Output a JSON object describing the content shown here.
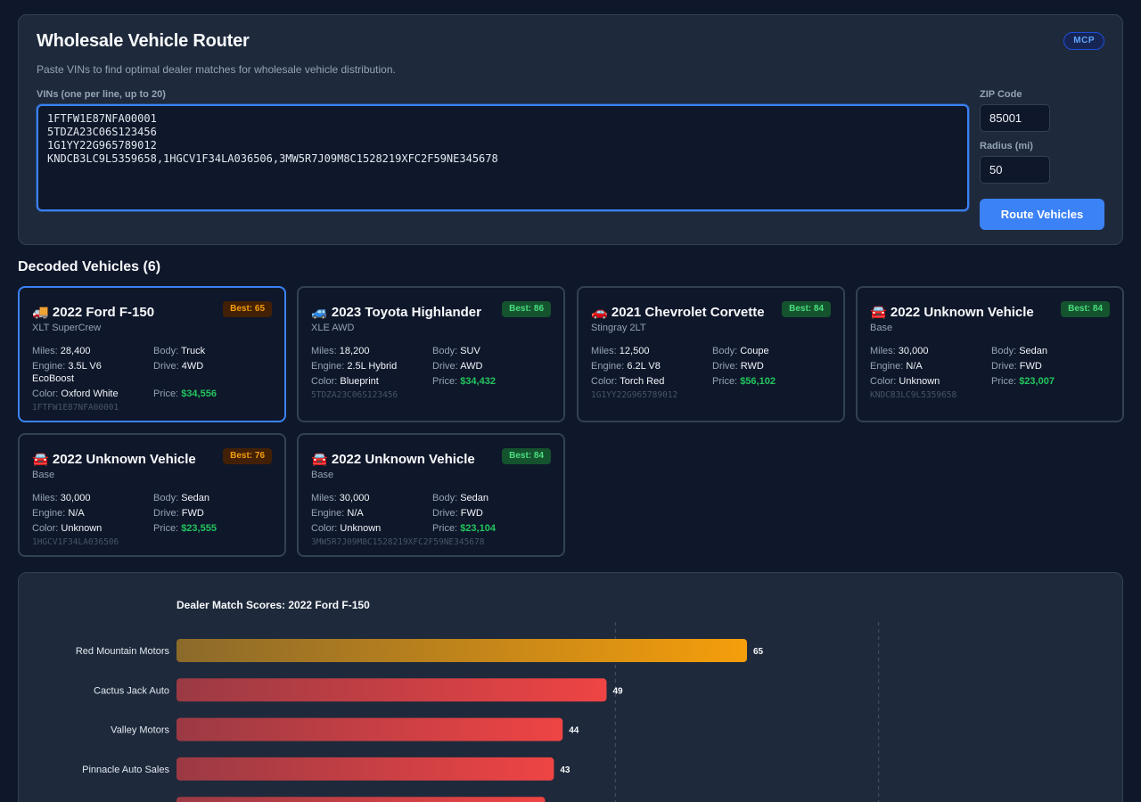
{
  "header": {
    "title": "Wholesale Vehicle Router",
    "badge": "MCP",
    "subtitle": "Paste VINs to find optimal dealer matches for wholesale vehicle distribution."
  },
  "form": {
    "vin_label": "VINs (one per line, up to 20)",
    "vin_value": "1FTFW1E87NFA00001\n5TDZA23C06S123456\n1G1YY22G965789012\nKNDCB3LC9L5359658,1HGCV1F34LA036506,3MW5R7J09M8C1528219XFC2F59NE345678",
    "zip_label": "ZIP Code",
    "zip_value": "85001",
    "radius_label": "Radius (mi)",
    "radius_value": "50",
    "submit_label": "Route Vehicles"
  },
  "decoded": {
    "title": "Decoded Vehicles (6)",
    "labels": {
      "miles": "Miles:",
      "engine": "Engine:",
      "color": "Color:",
      "body": "Body:",
      "drive": "Drive:",
      "price": "Price:"
    },
    "vehicles": [
      {
        "icon": "🚚",
        "title": "2022 Ford F-150",
        "trim": "XLT SuperCrew",
        "best": "Best: 65",
        "best_color": "orange",
        "miles": "28,400",
        "engine": "3.5L V6 EcoBoost",
        "color": "Oxford White",
        "body": "Truck",
        "drive": "4WD",
        "price": "$34,556",
        "vin": "1FTFW1E87NFA00001",
        "selected": true
      },
      {
        "icon": "🚙",
        "title": "2023 Toyota Highlander",
        "trim": "XLE AWD",
        "best": "Best: 86",
        "best_color": "green",
        "miles": "18,200",
        "engine": "2.5L Hybrid",
        "color": "Blueprint",
        "body": "SUV",
        "drive": "AWD",
        "price": "$34,432",
        "vin": "5TDZA23C06S123456",
        "selected": false
      },
      {
        "icon": "🚗",
        "title": "2021 Chevrolet Corvette",
        "trim": "Stingray 2LT",
        "best": "Best: 84",
        "best_color": "green",
        "miles": "12,500",
        "engine": "6.2L V8",
        "color": "Torch Red",
        "body": "Coupe",
        "drive": "RWD",
        "price": "$56,102",
        "vin": "1G1YY22G965789012",
        "selected": false
      },
      {
        "icon": "🚘",
        "title": "2022 Unknown Vehicle",
        "trim": "Base",
        "best": "Best: 84",
        "best_color": "green",
        "miles": "30,000",
        "engine": "N/A",
        "color": "Unknown",
        "body": "Sedan",
        "drive": "FWD",
        "price": "$23,007",
        "vin": "KNDCB3LC9L5359658",
        "selected": false
      },
      {
        "icon": "🚘",
        "title": "2022 Unknown Vehicle",
        "trim": "Base",
        "best": "Best: 76",
        "best_color": "orange",
        "miles": "30,000",
        "engine": "N/A",
        "color": "Unknown",
        "body": "Sedan",
        "drive": "FWD",
        "price": "$23,555",
        "vin": "1HGCV1F34LA036506",
        "selected": false
      },
      {
        "icon": "🚘",
        "title": "2022 Unknown Vehicle",
        "trim": "Base",
        "best": "Best: 84",
        "best_color": "green",
        "miles": "30,000",
        "engine": "N/A",
        "color": "Unknown",
        "body": "Sedan",
        "drive": "FWD",
        "price": "$23,104",
        "vin": "3MW5R7J09M8C1528219XFC2F59NE345678",
        "selected": false
      }
    ]
  },
  "colors": {
    "accent": "#3b82f6",
    "best_bar": "#f59e0b",
    "low_bar": "#ef4444",
    "price": "#22c55e"
  },
  "chart_data": {
    "type": "bar",
    "orientation": "horizontal",
    "title": "Dealer Match Scores: 2022 Ford F-150",
    "categories": [
      "Red Mountain Motors",
      "Cactus Jack Auto",
      "Valley Motors",
      "Pinnacle Auto Sales",
      ""
    ],
    "values": [
      65,
      49,
      44,
      43,
      42
    ],
    "grid": true,
    "xlim": [
      0,
      100
    ]
  }
}
